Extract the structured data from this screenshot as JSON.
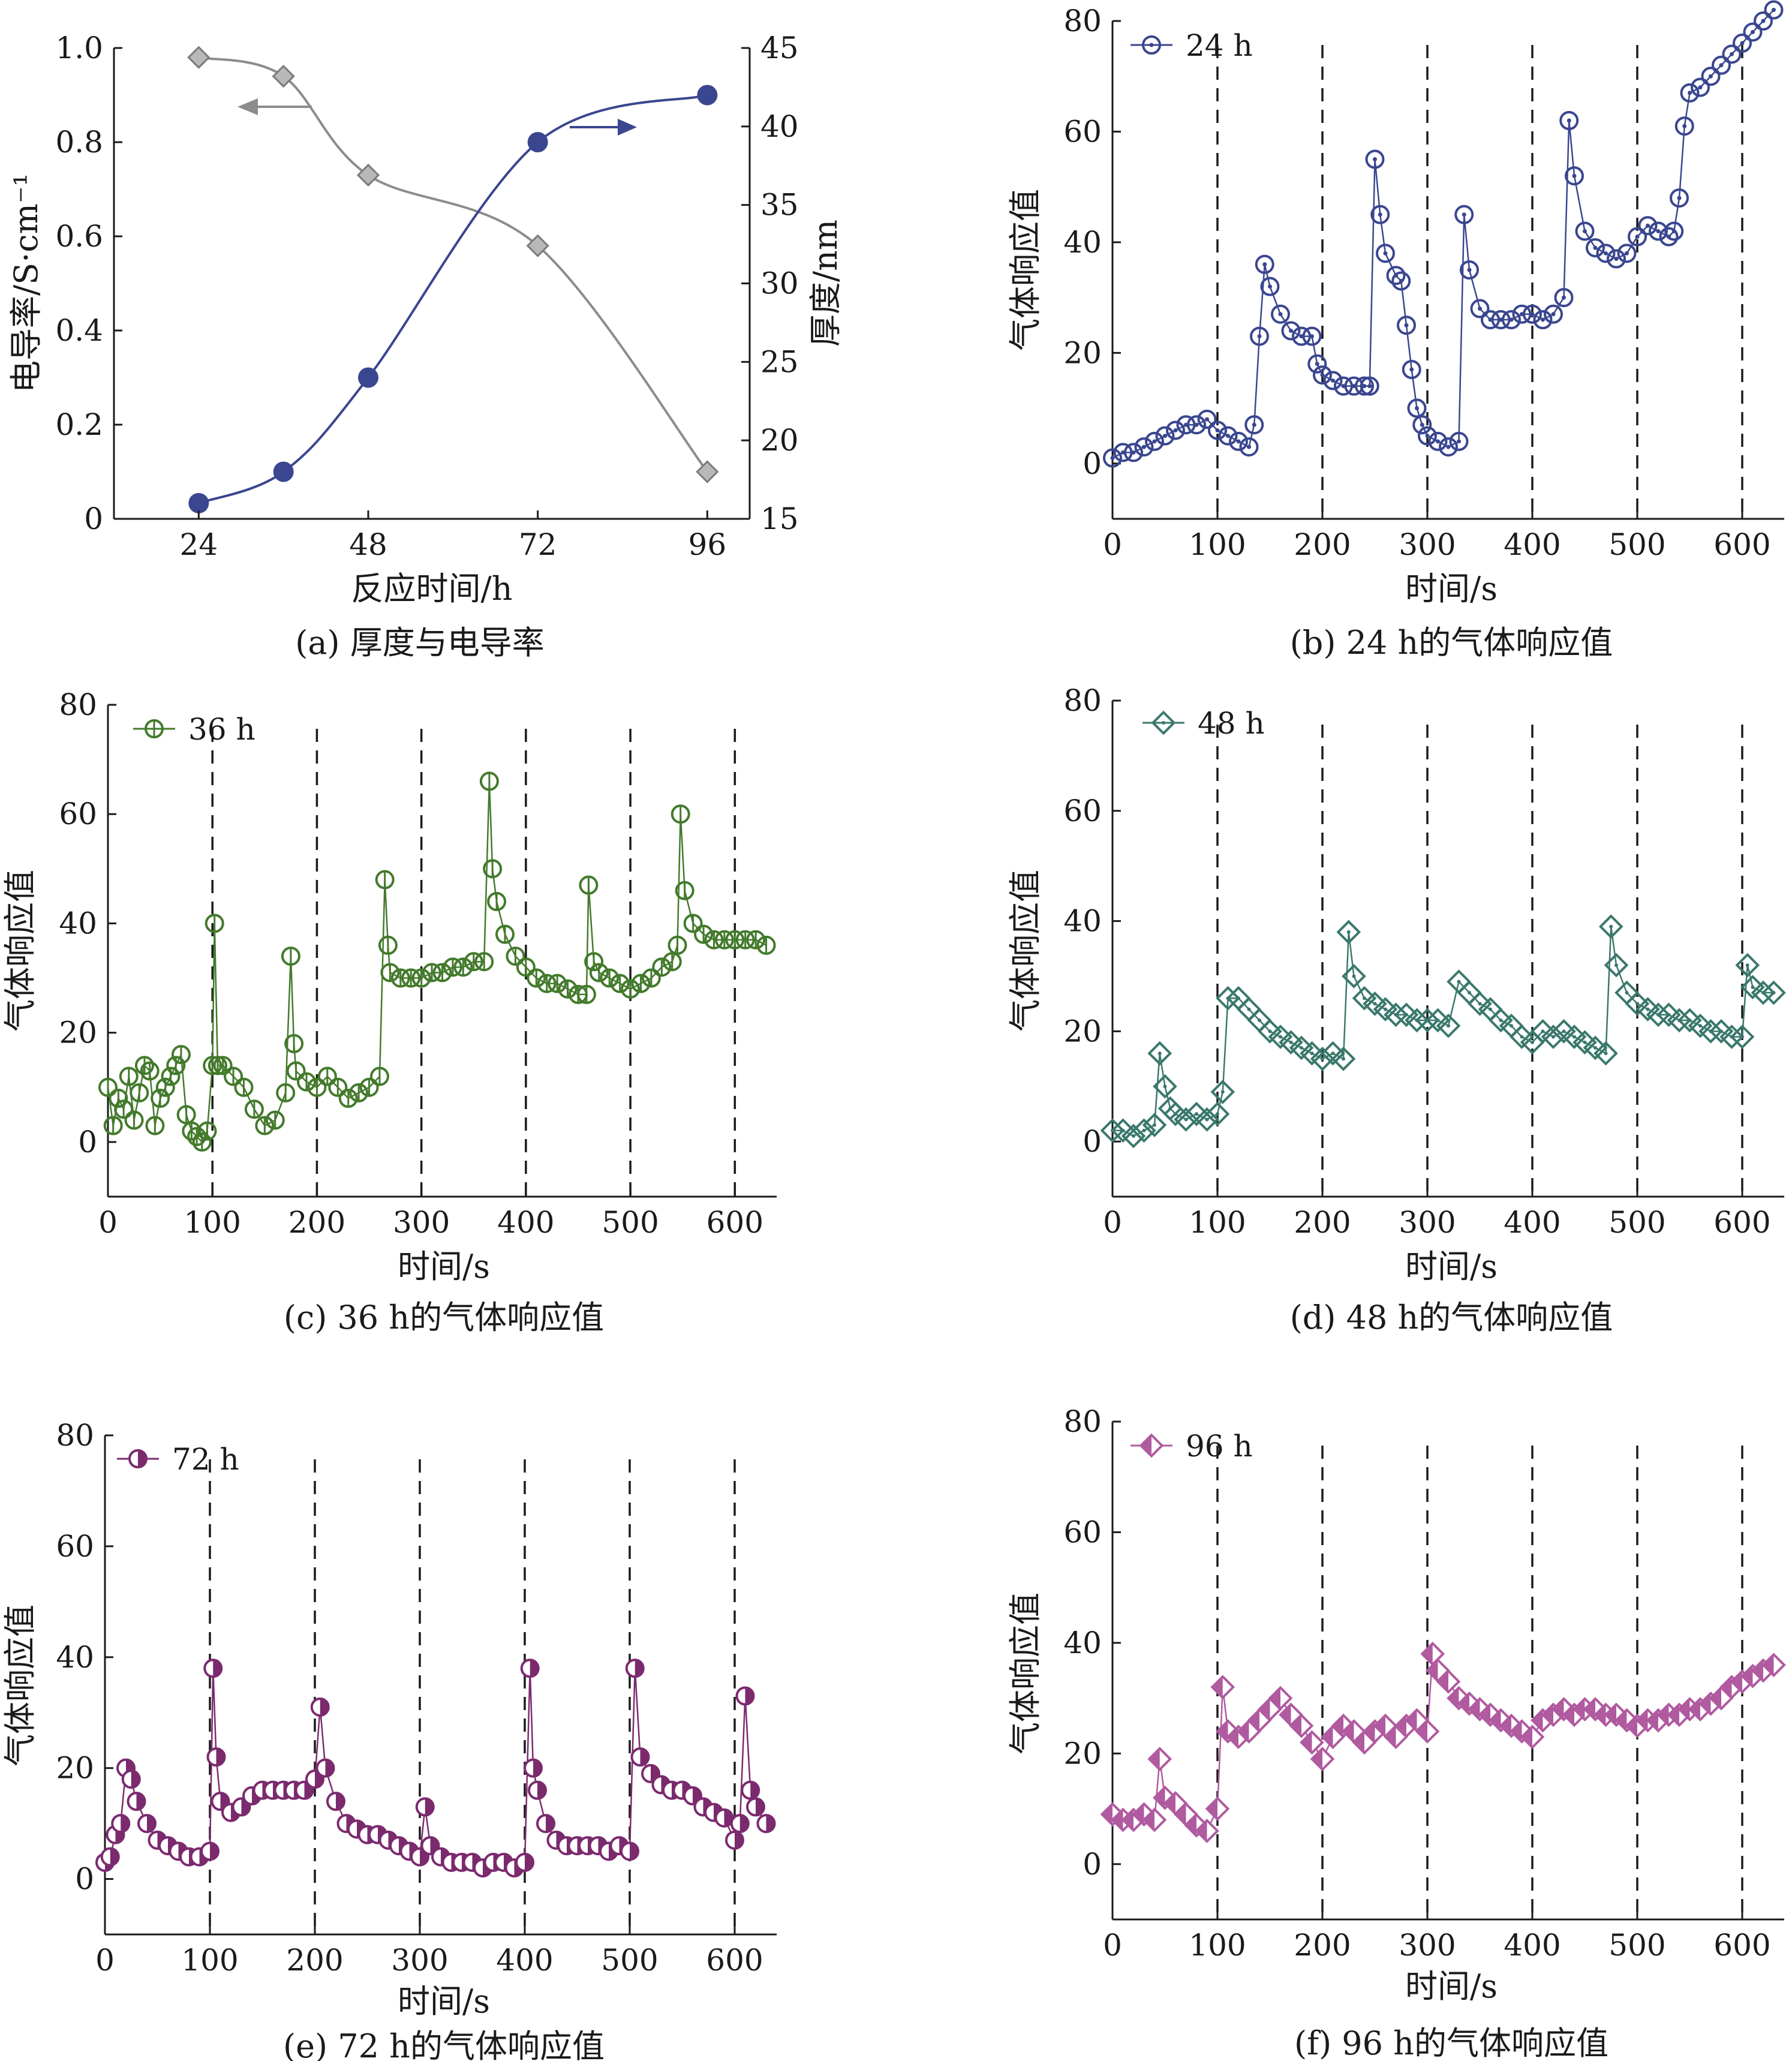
{
  "chart_data": [
    {
      "id": "a",
      "type": "line",
      "caption": "(a) 厚度与电导率",
      "xlabel": "反应时间/h",
      "ylabel_left": "电导率/S·cm⁻¹",
      "ylabel_right": "厚度/nm",
      "x_ticks": [
        "24",
        "48",
        "72",
        "96"
      ],
      "xlim": [
        12,
        102
      ],
      "ylim_left": [
        0,
        1.0
      ],
      "ylim_right": [
        15,
        45
      ],
      "y_ticks_left": [
        "0",
        "0.2",
        "0.4",
        "0.6",
        "0.8",
        "1.0"
      ],
      "y_ticks_right": [
        "15",
        "20",
        "25",
        "30",
        "35",
        "40",
        "45"
      ],
      "series": [
        {
          "axis": "left",
          "color": "#8c8c8c",
          "marker": "diamond",
          "x": [
            24,
            36,
            48,
            72,
            96
          ],
          "y": [
            0.98,
            0.94,
            0.73,
            0.58,
            0.1
          ]
        },
        {
          "axis": "right",
          "color": "#3a468f",
          "marker": "circle",
          "x": [
            24,
            36,
            48,
            72,
            96
          ],
          "y": [
            16,
            18,
            24,
            39,
            42
          ]
        }
      ]
    },
    {
      "id": "b",
      "type": "scatter",
      "caption": "(b) 24 h的气体响应值",
      "legend": "24 h",
      "color": "#3a468f",
      "marker": "circle-dot",
      "xlabel": "时间/s",
      "ylabel": "气体响应值",
      "xlim": [
        0,
        640
      ],
      "ylim": [
        -10,
        80
      ],
      "x_ticks": [
        0,
        100,
        200,
        300,
        400,
        500,
        600
      ],
      "y_ticks": [
        0,
        20,
        40,
        60,
        80
      ],
      "dashed_x": [
        100,
        200,
        300,
        400,
        500,
        600
      ],
      "x": [
        0,
        10,
        20,
        30,
        40,
        50,
        60,
        70,
        80,
        90,
        100,
        110,
        120,
        130,
        135,
        140,
        145,
        150,
        160,
        170,
        180,
        190,
        195,
        200,
        210,
        220,
        230,
        240,
        245,
        250,
        255,
        260,
        270,
        275,
        280,
        285,
        290,
        295,
        300,
        310,
        320,
        330,
        335,
        340,
        350,
        360,
        370,
        380,
        390,
        400,
        410,
        420,
        430,
        435,
        440,
        450,
        460,
        470,
        480,
        490,
        500,
        510,
        520,
        530,
        535,
        540,
        545,
        550,
        560,
        570,
        580,
        590,
        600,
        610,
        620,
        630
      ],
      "y": [
        1,
        2,
        2,
        3,
        4,
        5,
        6,
        7,
        7,
        8,
        6,
        5,
        4,
        3,
        7,
        23,
        36,
        32,
        27,
        24,
        23,
        23,
        18,
        16,
        15,
        14,
        14,
        14,
        14,
        55,
        45,
        38,
        34,
        33,
        25,
        17,
        10,
        7,
        5,
        4,
        3,
        4,
        45,
        35,
        28,
        26,
        26,
        26,
        27,
        27,
        26,
        27,
        30,
        62,
        52,
        42,
        39,
        38,
        37,
        38,
        41,
        43,
        42,
        41,
        42,
        48,
        61,
        67,
        68,
        70,
        72,
        74,
        76,
        78,
        80,
        82
      ]
    },
    {
      "id": "c",
      "type": "scatter",
      "caption": "(c) 36 h的气体响应值",
      "legend": "36 h",
      "color": "#437a2c",
      "marker": "circle-bar",
      "xlabel": "时间/s",
      "ylabel": "气体响应值",
      "xlim": [
        0,
        640
      ],
      "ylim": [
        -10,
        80
      ],
      "x_ticks": [
        0,
        100,
        200,
        300,
        400,
        500,
        600
      ],
      "y_ticks": [
        0,
        20,
        40,
        60,
        80
      ],
      "dashed_x": [
        100,
        200,
        300,
        400,
        500,
        600
      ],
      "x": [
        0,
        5,
        10,
        15,
        20,
        25,
        30,
        35,
        40,
        45,
        50,
        55,
        60,
        65,
        70,
        75,
        80,
        85,
        90,
        95,
        100,
        102,
        105,
        110,
        120,
        130,
        140,
        150,
        160,
        170,
        175,
        178,
        180,
        190,
        200,
        210,
        220,
        230,
        240,
        250,
        260,
        265,
        268,
        270,
        280,
        290,
        300,
        310,
        320,
        330,
        340,
        350,
        360,
        365,
        368,
        372,
        380,
        390,
        400,
        410,
        420,
        430,
        440,
        450,
        458,
        460,
        465,
        470,
        480,
        490,
        500,
        510,
        520,
        530,
        540,
        545,
        548,
        552,
        560,
        570,
        580,
        590,
        600,
        610,
        620,
        630
      ],
      "y": [
        10,
        3,
        8,
        6,
        12,
        4,
        9,
        14,
        13,
        3,
        8,
        10,
        12,
        14,
        16,
        5,
        2,
        1,
        0,
        2,
        14,
        40,
        14,
        14,
        12,
        10,
        6,
        3,
        4,
        9,
        34,
        18,
        13,
        11,
        10,
        12,
        10,
        8,
        9,
        10,
        12,
        48,
        36,
        31,
        30,
        30,
        30,
        31,
        31,
        32,
        32,
        33,
        33,
        66,
        50,
        44,
        38,
        34,
        32,
        30,
        29,
        29,
        28,
        27,
        27,
        47,
        33,
        31,
        30,
        29,
        28,
        29,
        30,
        32,
        33,
        36,
        60,
        46,
        40,
        38,
        37,
        37,
        37,
        37,
        37,
        36
      ]
    },
    {
      "id": "d",
      "type": "scatter",
      "caption": "(d) 48 h的气体响应值",
      "legend": "48 h",
      "color": "#3a786c",
      "marker": "diamond-dot",
      "xlabel": "时间/s",
      "ylabel": "气体响应值",
      "xlim": [
        0,
        640
      ],
      "ylim": [
        -10,
        80
      ],
      "x_ticks": [
        0,
        100,
        200,
        300,
        400,
        500,
        600
      ],
      "y_ticks": [
        0,
        20,
        40,
        60,
        80
      ],
      "dashed_x": [
        100,
        200,
        300,
        400,
        500,
        600
      ],
      "x": [
        0,
        10,
        20,
        30,
        40,
        45,
        50,
        55,
        60,
        70,
        80,
        90,
        100,
        105,
        110,
        120,
        130,
        140,
        150,
        160,
        170,
        180,
        190,
        200,
        210,
        220,
        225,
        230,
        240,
        250,
        260,
        270,
        280,
        290,
        300,
        310,
        320,
        330,
        340,
        350,
        360,
        370,
        380,
        390,
        400,
        410,
        420,
        430,
        440,
        450,
        460,
        470,
        475,
        480,
        490,
        500,
        510,
        520,
        530,
        540,
        550,
        560,
        570,
        580,
        590,
        600,
        605,
        610,
        620,
        630
      ],
      "y": [
        2,
        2,
        1,
        2,
        3,
        16,
        10,
        6,
        5,
        4,
        5,
        4,
        5,
        9,
        26,
        26,
        24,
        22,
        20,
        19,
        18,
        17,
        16,
        15,
        16,
        15,
        38,
        30,
        26,
        25,
        24,
        23,
        23,
        22,
        22,
        22,
        21,
        29,
        27,
        25,
        24,
        22,
        21,
        19,
        18,
        20,
        19,
        20,
        19,
        18,
        17,
        16,
        39,
        32,
        27,
        25,
        24,
        23,
        23,
        22,
        22,
        21,
        20,
        20,
        19,
        19,
        32,
        28,
        27,
        27
      ]
    },
    {
      "id": "e",
      "type": "scatter",
      "caption": "(e) 72 h的气体响应值",
      "legend": "72 h",
      "color": "#7b2a6e",
      "marker": "circle-half",
      "xlabel": "时间/s",
      "ylabel": "气体响应值",
      "xlim": [
        0,
        640
      ],
      "ylim": [
        -10,
        80
      ],
      "x_ticks": [
        0,
        100,
        200,
        300,
        400,
        500,
        600
      ],
      "y_ticks": [
        0,
        20,
        40,
        60,
        80
      ],
      "dashed_x": [
        100,
        200,
        300,
        400,
        500,
        600
      ],
      "x": [
        0,
        5,
        10,
        15,
        20,
        25,
        30,
        40,
        50,
        60,
        70,
        80,
        90,
        100,
        103,
        106,
        110,
        120,
        130,
        140,
        150,
        160,
        170,
        180,
        190,
        200,
        205,
        210,
        220,
        230,
        240,
        250,
        260,
        270,
        280,
        290,
        300,
        305,
        310,
        320,
        330,
        340,
        350,
        360,
        370,
        380,
        390,
        400,
        405,
        408,
        412,
        420,
        430,
        440,
        450,
        460,
        470,
        480,
        490,
        500,
        505,
        510,
        520,
        530,
        540,
        550,
        560,
        570,
        580,
        590,
        600,
        605,
        610,
        615,
        620,
        630
      ],
      "y": [
        3,
        4,
        8,
        10,
        20,
        18,
        14,
        10,
        7,
        6,
        5,
        4,
        4,
        5,
        38,
        22,
        14,
        12,
        13,
        15,
        16,
        16,
        16,
        16,
        16,
        18,
        31,
        20,
        14,
        10,
        9,
        8,
        8,
        7,
        6,
        5,
        4,
        13,
        6,
        4,
        3,
        3,
        3,
        2,
        3,
        3,
        2,
        3,
        38,
        20,
        16,
        10,
        7,
        6,
        6,
        6,
        6,
        5,
        6,
        5,
        38,
        22,
        19,
        17,
        16,
        16,
        15,
        13,
        12,
        11,
        7,
        10,
        33,
        16,
        13,
        10
      ]
    },
    {
      "id": "f",
      "type": "scatter",
      "caption": "(f) 96 h的气体响应值",
      "legend": "96 h",
      "color": "#b05aa0",
      "marker": "diamond-half",
      "xlabel": "时间/s",
      "ylabel": "气体响应值",
      "xlim": [
        0,
        640
      ],
      "ylim": [
        -10,
        80
      ],
      "x_ticks": [
        0,
        100,
        200,
        300,
        400,
        500,
        600
      ],
      "y_ticks": [
        0,
        20,
        40,
        60,
        80
      ],
      "dashed_x": [
        100,
        200,
        300,
        400,
        500,
        600
      ],
      "x": [
        0,
        10,
        20,
        30,
        40,
        45,
        50,
        60,
        70,
        80,
        90,
        100,
        105,
        110,
        120,
        130,
        140,
        150,
        160,
        170,
        180,
        190,
        200,
        210,
        220,
        230,
        240,
        250,
        260,
        270,
        280,
        290,
        300,
        305,
        310,
        320,
        330,
        340,
        350,
        360,
        370,
        380,
        390,
        400,
        410,
        420,
        430,
        440,
        450,
        460,
        470,
        480,
        490,
        500,
        510,
        520,
        530,
        540,
        550,
        560,
        570,
        580,
        590,
        600,
        610,
        620,
        630
      ],
      "y": [
        9,
        8,
        8,
        9,
        8,
        19,
        12,
        11,
        9,
        7,
        6,
        10,
        32,
        24,
        23,
        24,
        26,
        28,
        30,
        27,
        25,
        22,
        19,
        23,
        25,
        24,
        22,
        24,
        25,
        23,
        25,
        26,
        24,
        38,
        35,
        33,
        30,
        29,
        28,
        27,
        26,
        25,
        24,
        23,
        26,
        27,
        28,
        27,
        28,
        28,
        27,
        27,
        26,
        25,
        26,
        26,
        27,
        27,
        28,
        28,
        29,
        30,
        32,
        33,
        34,
        35,
        36
      ]
    }
  ]
}
